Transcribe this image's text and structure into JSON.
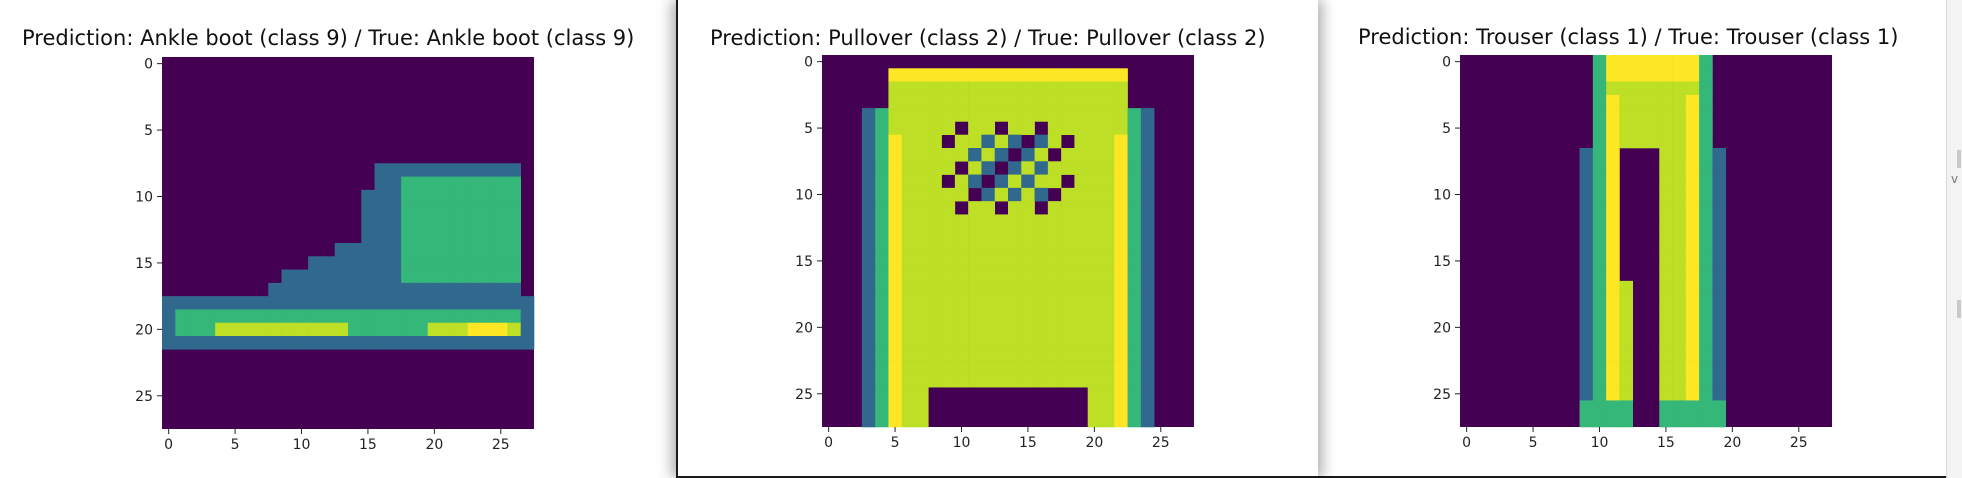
{
  "chart_data": [
    {
      "type": "heatmap",
      "title": "Prediction: Ankle boot (class 9) / True: Ankle boot (class 9)",
      "shape": "ankle-boot",
      "xlim": [
        -0.5,
        27.5
      ],
      "ylim": [
        27.5,
        -0.5
      ],
      "xticks": [
        0,
        5,
        10,
        15,
        20,
        25
      ],
      "yticks": [
        0,
        5,
        10,
        15,
        20,
        25
      ],
      "colormap": "viridis"
    },
    {
      "type": "heatmap",
      "title": "Prediction: Pullover (class 2) / True: Pullover (class 2)",
      "shape": "pullover",
      "xlim": [
        -0.5,
        27.5
      ],
      "ylim": [
        27.5,
        -0.5
      ],
      "xticks": [
        0,
        5,
        10,
        15,
        20,
        25
      ],
      "yticks": [
        0,
        5,
        10,
        15,
        20,
        25
      ],
      "colormap": "viridis"
    },
    {
      "type": "heatmap",
      "title": "Prediction: Trouser (class 1) / True: Trouser (class 1)",
      "shape": "trouser",
      "xlim": [
        -0.5,
        27.5
      ],
      "ylim": [
        27.5,
        -0.5
      ],
      "xticks": [
        0,
        5,
        10,
        15,
        20,
        25
      ],
      "yticks": [
        0,
        5,
        10,
        15,
        20,
        25
      ],
      "colormap": "viridis"
    }
  ],
  "colors": {
    "background": "#440154",
    "low": "#31688e",
    "mid": "#35b779",
    "high": "#bddf26",
    "peak": "#fde725"
  },
  "sliver_glyph": "v"
}
